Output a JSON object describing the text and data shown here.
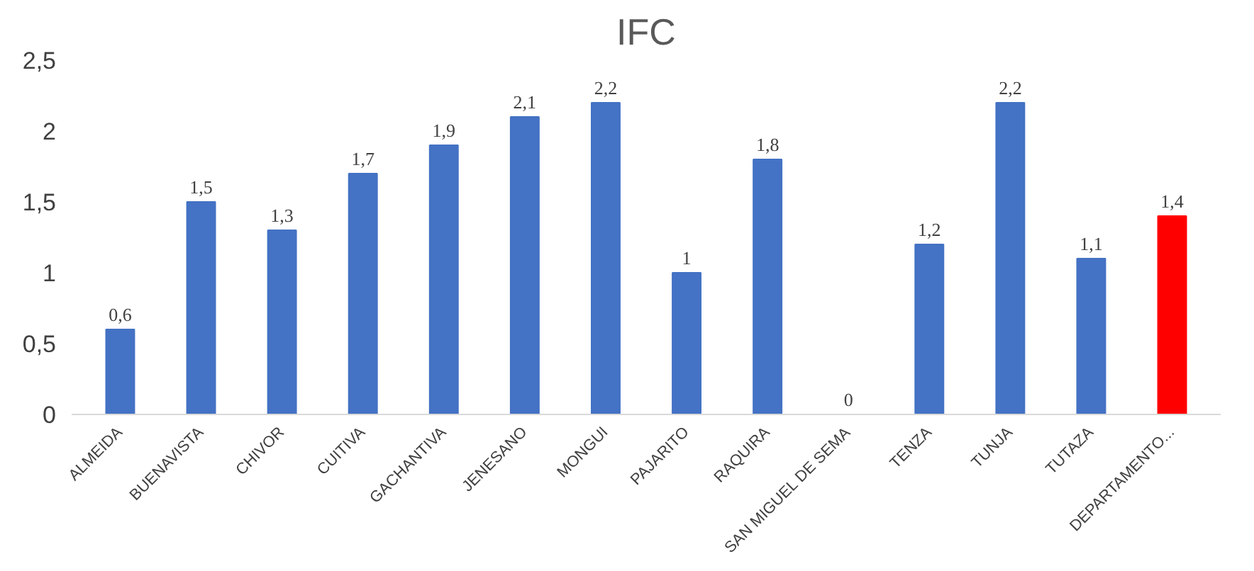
{
  "chart_data": {
    "type": "bar",
    "title": "IFC",
    "categories": [
      "ALMEIDA",
      "BUENAVISTA",
      "CHIVOR",
      "CUITIVA",
      "GACHANTIVA",
      "JENESANO",
      "MONGUI",
      "PAJARITO",
      "RAQUIRA",
      "SAN MIGUEL DE SEMA",
      "TENZA",
      "TUNJA",
      "TUTAZA",
      "DEPARTAMENTO..."
    ],
    "values": [
      0.6,
      1.5,
      1.3,
      1.7,
      1.9,
      2.1,
      2.2,
      1,
      1.8,
      0,
      1.2,
      2.2,
      1.1,
      1.4
    ],
    "value_labels": [
      "0,6",
      "1,5",
      "1,3",
      "1,7",
      "1,9",
      "2,1",
      "2,2",
      "1",
      "1,8",
      "0",
      "1,2",
      "2,2",
      "1,1",
      "1,4"
    ],
    "colors": [
      "#4472c4",
      "#4472c4",
      "#4472c4",
      "#4472c4",
      "#4472c4",
      "#4472c4",
      "#4472c4",
      "#4472c4",
      "#4472c4",
      "#4472c4",
      "#4472c4",
      "#4472c4",
      "#4472c4",
      "#ff0000"
    ],
    "ylim": [
      0,
      2.5
    ],
    "yticks": [
      0,
      {
        "value": 0.5,
        "label": "0,5"
      },
      1,
      {
        "value": 1.5,
        "label": "1,5"
      },
      2,
      {
        "value": 2.5,
        "label": "2,5"
      }
    ],
    "grid": false
  }
}
